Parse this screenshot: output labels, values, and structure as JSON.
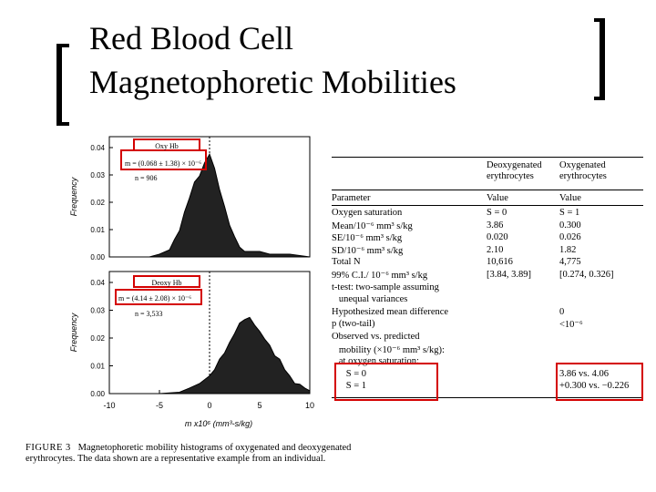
{
  "title": {
    "line1": "Red Blood Cell",
    "line2": "Magnetophoretic Mobilities"
  },
  "chart_data": [
    {
      "type": "area",
      "panel": "top",
      "label": "Oxy Hb",
      "annotation_m": "m = (0.068 ± 1.38) × 10⁻⁶",
      "annotation_n": "n = 906",
      "ylabel": "Frequency",
      "yticks": [
        "0.04",
        "0.03",
        "0.02",
        "0.01",
        "0.00"
      ],
      "ylim": [
        0,
        0.045
      ],
      "xlim": [
        -10,
        10
      ],
      "x": [
        -10,
        -9,
        -8,
        -7,
        -6,
        -5,
        -4,
        -3.5,
        -3,
        -2.5,
        -2,
        -1.5,
        -1,
        -0.5,
        0,
        0.5,
        1,
        1.5,
        2,
        2.5,
        3,
        3.5,
        4,
        5,
        6,
        7,
        8,
        9,
        10
      ],
      "y": [
        0,
        0,
        0,
        0,
        0,
        0.001,
        0.003,
        0.006,
        0.01,
        0.016,
        0.022,
        0.027,
        0.03,
        0.034,
        0.038,
        0.032,
        0.025,
        0.018,
        0.012,
        0.007,
        0.004,
        0.002,
        0.002,
        0.002,
        0.001,
        0.001,
        0.001,
        0.0005,
        0
      ]
    },
    {
      "type": "area",
      "panel": "bottom",
      "label": "Deoxy Hb",
      "annotation_m": "m = (4.14 ± 2.08) × 10⁻⁶",
      "annotation_n": "n = 3,533",
      "ylabel": "Frequency",
      "yticks": [
        "0.04",
        "0.03",
        "0.02",
        "0.01",
        "0.00"
      ],
      "xticks": [
        "-10",
        "-5",
        "0",
        "5",
        "10"
      ],
      "xlabel": "m x10⁶ (mm³-s/kg)",
      "ylim": [
        0,
        0.045
      ],
      "xlim": [
        -10,
        10
      ],
      "x": [
        -10,
        -5,
        -3,
        -2,
        -1,
        0,
        0.5,
        1,
        1.5,
        2,
        2.5,
        3,
        3.5,
        4,
        4.5,
        5,
        5.5,
        6,
        6.5,
        7,
        7.5,
        8,
        8.5,
        9,
        9.5,
        10
      ],
      "y": [
        0,
        0,
        0.0005,
        0.002,
        0.004,
        0.006,
        0.009,
        0.012,
        0.015,
        0.018,
        0.022,
        0.025,
        0.027,
        0.027,
        0.025,
        0.022,
        0.02,
        0.017,
        0.014,
        0.012,
        0.009,
        0.006,
        0.004,
        0.003,
        0.002,
        0.001
      ]
    }
  ],
  "table": {
    "headers": {
      "param": "Parameter",
      "deoxy": "Deoxygenated erythrocytes",
      "oxy": "Oxygenated erythrocytes",
      "deoxy_line1": "Deoxygenated",
      "deoxy_line2": "erythrocytes",
      "oxy_line1": "Oxygenated",
      "oxy_line2": "erythrocytes",
      "value": "Value"
    },
    "rows": [
      {
        "param": "Oxygen saturation",
        "deoxy": "S = 0",
        "oxy": "S = 1"
      },
      {
        "param": "Mean/10⁻⁶ mm³ s/kg",
        "deoxy": "3.86",
        "oxy": "0.300"
      },
      {
        "param": "SE/10⁻⁶ mm³ s/kg",
        "deoxy": "0.020",
        "oxy": "0.026"
      },
      {
        "param": "SD/10⁻⁶ mm³ s/kg",
        "deoxy": "2.10",
        "oxy": "1.82"
      },
      {
        "param": "Total N",
        "deoxy": "10,616",
        "oxy": "4,775"
      },
      {
        "param": "99% C.I./ 10⁻⁶ mm³ s/kg",
        "deoxy": "[3.84, 3.89]",
        "oxy": "[0.274, 0.326]"
      },
      {
        "param": "t-test: two-sample assuming",
        "deoxy": "",
        "oxy": ""
      },
      {
        "param": "   unequal variances",
        "deoxy": "",
        "oxy": ""
      },
      {
        "param": "Hypothesized mean difference",
        "deoxy": "",
        "oxy": "0"
      },
      {
        "param": "p (two-tail)",
        "deoxy": "",
        "oxy": "<10⁻⁶"
      },
      {
        "param": "Observed vs. predicted",
        "deoxy": "",
        "oxy": ""
      },
      {
        "param": "   mobility (×10⁻⁶ mm³ s/kg):",
        "deoxy": "",
        "oxy": ""
      },
      {
        "param": "   at oxygen saturation:",
        "deoxy": "",
        "oxy": ""
      },
      {
        "param": "      S = 0",
        "deoxy": "",
        "oxy": "3.86 vs. 4.06"
      },
      {
        "param": "      S = 1",
        "deoxy": "",
        "oxy": "+0.300 vs. −0.226"
      }
    ]
  },
  "caption": {
    "label": "FIGURE 3",
    "text": "Magnetophoretic mobility histograms of oxygenated and deoxygenated erythrocytes. The data shown are a representative example from an individual."
  }
}
